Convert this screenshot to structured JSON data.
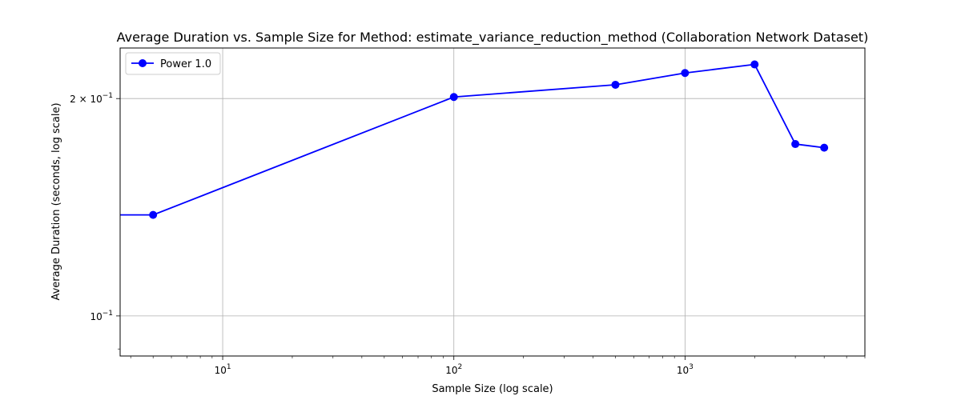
{
  "chart_data": {
    "type": "line",
    "title": "Average Duration vs. Sample Size for Method: estimate_variance_reduction_method (Collaboration Network Dataset)",
    "xlabel": "Sample Size (log scale)",
    "ylabel": "Average Duration (seconds, log scale)",
    "xscale": "log",
    "yscale": "log",
    "xlim": [
      3.6,
      6000
    ],
    "ylim": [
      0.088,
      0.235
    ],
    "x_ticks": [
      {
        "value": 10,
        "base": "10",
        "exp": "1"
      },
      {
        "value": 100,
        "base": "10",
        "exp": "2"
      },
      {
        "value": 1000,
        "base": "10",
        "exp": "3"
      }
    ],
    "y_ticks": [
      {
        "value": 0.1,
        "base": "10",
        "exp": "−1",
        "prefix": ""
      },
      {
        "value": 0.2,
        "base": "10",
        "exp": "−1",
        "prefix": "2 × "
      }
    ],
    "grid": true,
    "legend_position": "upper-left",
    "series": [
      {
        "name": "Power 1.0",
        "color": "#0000ff",
        "marker": "circle",
        "x": [
          2,
          5,
          100,
          500,
          1000,
          2000,
          3000,
          4000
        ],
        "y": [
          0.138,
          0.138,
          0.201,
          0.209,
          0.217,
          0.223,
          0.173,
          0.171
        ]
      }
    ]
  }
}
